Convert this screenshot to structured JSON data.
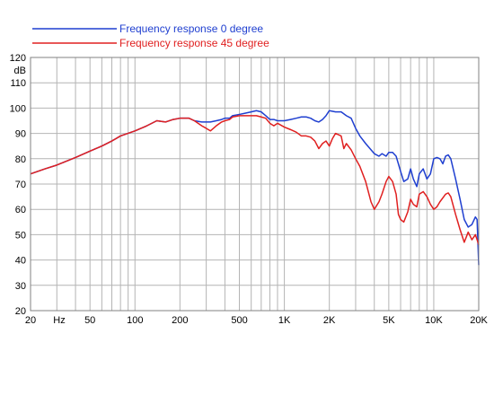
{
  "chart_data": {
    "type": "line",
    "xscale": "log",
    "xlim": [
      20,
      20000
    ],
    "ylim": [
      20,
      120
    ],
    "grid": true,
    "legend_placement": "top-center",
    "ylabel": "dB",
    "xlabel": "Hz",
    "x_ticks": [
      {
        "value": 20,
        "label": "20"
      },
      {
        "value": 50,
        "label": "50"
      },
      {
        "value": 100,
        "label": "100"
      },
      {
        "value": 200,
        "label": "200"
      },
      {
        "value": 500,
        "label": "500"
      },
      {
        "value": 1000,
        "label": "1K"
      },
      {
        "value": 2000,
        "label": "2K"
      },
      {
        "value": 5000,
        "label": "5K"
      },
      {
        "value": 10000,
        "label": "10K"
      },
      {
        "value": 20000,
        "label": "20K"
      }
    ],
    "y_ticks": [
      20,
      30,
      40,
      50,
      60,
      70,
      80,
      90,
      100,
      110,
      120
    ],
    "series": [
      {
        "name": "Frequency response 0 degree",
        "color": "#1f3fd0",
        "points": [
          [
            20,
            74
          ],
          [
            25,
            76
          ],
          [
            30,
            77.5
          ],
          [
            40,
            80.5
          ],
          [
            50,
            83
          ],
          [
            60,
            85
          ],
          [
            70,
            87
          ],
          [
            80,
            89
          ],
          [
            100,
            91
          ],
          [
            120,
            93
          ],
          [
            140,
            95
          ],
          [
            160,
            94.5
          ],
          [
            180,
            95.5
          ],
          [
            200,
            96
          ],
          [
            230,
            96
          ],
          [
            250,
            95
          ],
          [
            280,
            94.5
          ],
          [
            300,
            94.5
          ],
          [
            320,
            94.5
          ],
          [
            350,
            95
          ],
          [
            380,
            95.5
          ],
          [
            400,
            96
          ],
          [
            430,
            96
          ],
          [
            450,
            97
          ],
          [
            500,
            97.5
          ],
          [
            550,
            98
          ],
          [
            600,
            98.5
          ],
          [
            650,
            99
          ],
          [
            700,
            98.5
          ],
          [
            750,
            97
          ],
          [
            800,
            95.5
          ],
          [
            850,
            95.5
          ],
          [
            900,
            95
          ],
          [
            1000,
            95
          ],
          [
            1100,
            95.5
          ],
          [
            1200,
            96
          ],
          [
            1300,
            96.5
          ],
          [
            1400,
            96.5
          ],
          [
            1500,
            96
          ],
          [
            1600,
            95
          ],
          [
            1700,
            94.5
          ],
          [
            1800,
            95.5
          ],
          [
            1900,
            97
          ],
          [
            2000,
            99
          ],
          [
            2200,
            98.5
          ],
          [
            2400,
            98.5
          ],
          [
            2600,
            97
          ],
          [
            2800,
            96
          ],
          [
            3000,
            92
          ],
          [
            3200,
            89
          ],
          [
            3500,
            86
          ],
          [
            4000,
            82
          ],
          [
            4300,
            81
          ],
          [
            4500,
            82
          ],
          [
            4800,
            81
          ],
          [
            5000,
            82.5
          ],
          [
            5300,
            82.5
          ],
          [
            5600,
            81
          ],
          [
            6000,
            75
          ],
          [
            6300,
            71
          ],
          [
            6700,
            72
          ],
          [
            7000,
            76
          ],
          [
            7300,
            72
          ],
          [
            7700,
            69
          ],
          [
            8000,
            74
          ],
          [
            8500,
            76
          ],
          [
            9000,
            72
          ],
          [
            9500,
            74
          ],
          [
            10000,
            80
          ],
          [
            10500,
            80.5
          ],
          [
            11000,
            80
          ],
          [
            11500,
            78
          ],
          [
            12000,
            81
          ],
          [
            12500,
            81.5
          ],
          [
            13000,
            80
          ],
          [
            14000,
            72
          ],
          [
            15000,
            64
          ],
          [
            16000,
            56
          ],
          [
            17000,
            53
          ],
          [
            18000,
            54
          ],
          [
            19000,
            57
          ],
          [
            19500,
            56
          ],
          [
            20000,
            38
          ]
        ]
      },
      {
        "name": "Frequency response 45 degree",
        "color": "#e02020",
        "points": [
          [
            20,
            74
          ],
          [
            25,
            76
          ],
          [
            30,
            77.5
          ],
          [
            40,
            80.5
          ],
          [
            50,
            83
          ],
          [
            60,
            85
          ],
          [
            70,
            87
          ],
          [
            80,
            89
          ],
          [
            100,
            91
          ],
          [
            120,
            93
          ],
          [
            140,
            95
          ],
          [
            160,
            94.5
          ],
          [
            180,
            95.5
          ],
          [
            200,
            96
          ],
          [
            230,
            96
          ],
          [
            250,
            95
          ],
          [
            280,
            93
          ],
          [
            300,
            92
          ],
          [
            320,
            91
          ],
          [
            350,
            93
          ],
          [
            380,
            94.5
          ],
          [
            400,
            95
          ],
          [
            430,
            95.5
          ],
          [
            450,
            96.5
          ],
          [
            500,
            97
          ],
          [
            550,
            97
          ],
          [
            600,
            97
          ],
          [
            650,
            97
          ],
          [
            700,
            96.5
          ],
          [
            750,
            96
          ],
          [
            800,
            94
          ],
          [
            850,
            93
          ],
          [
            900,
            94
          ],
          [
            1000,
            92.5
          ],
          [
            1100,
            91.5
          ],
          [
            1200,
            90.5
          ],
          [
            1300,
            89
          ],
          [
            1400,
            89
          ],
          [
            1500,
            88.5
          ],
          [
            1600,
            87
          ],
          [
            1700,
            84
          ],
          [
            1800,
            86
          ],
          [
            1900,
            87
          ],
          [
            2000,
            85
          ],
          [
            2100,
            88
          ],
          [
            2200,
            90
          ],
          [
            2400,
            89
          ],
          [
            2500,
            84
          ],
          [
            2600,
            86
          ],
          [
            2800,
            83.5
          ],
          [
            3000,
            80
          ],
          [
            3200,
            77
          ],
          [
            3500,
            71
          ],
          [
            3800,
            63
          ],
          [
            4000,
            60
          ],
          [
            4300,
            63
          ],
          [
            4500,
            66
          ],
          [
            4800,
            71
          ],
          [
            5000,
            73
          ],
          [
            5300,
            71
          ],
          [
            5600,
            66
          ],
          [
            5800,
            58
          ],
          [
            6000,
            56
          ],
          [
            6300,
            55
          ],
          [
            6700,
            59
          ],
          [
            7000,
            64
          ],
          [
            7300,
            62
          ],
          [
            7700,
            61
          ],
          [
            8000,
            66
          ],
          [
            8500,
            67
          ],
          [
            9000,
            65
          ],
          [
            9500,
            62
          ],
          [
            10000,
            60
          ],
          [
            10500,
            61
          ],
          [
            11000,
            63
          ],
          [
            12000,
            66
          ],
          [
            12500,
            66.5
          ],
          [
            13000,
            65
          ],
          [
            14000,
            58
          ],
          [
            15000,
            52
          ],
          [
            16000,
            47
          ],
          [
            17000,
            51
          ],
          [
            18000,
            48
          ],
          [
            19000,
            50
          ],
          [
            19500,
            48
          ],
          [
            20000,
            46
          ]
        ]
      }
    ]
  }
}
